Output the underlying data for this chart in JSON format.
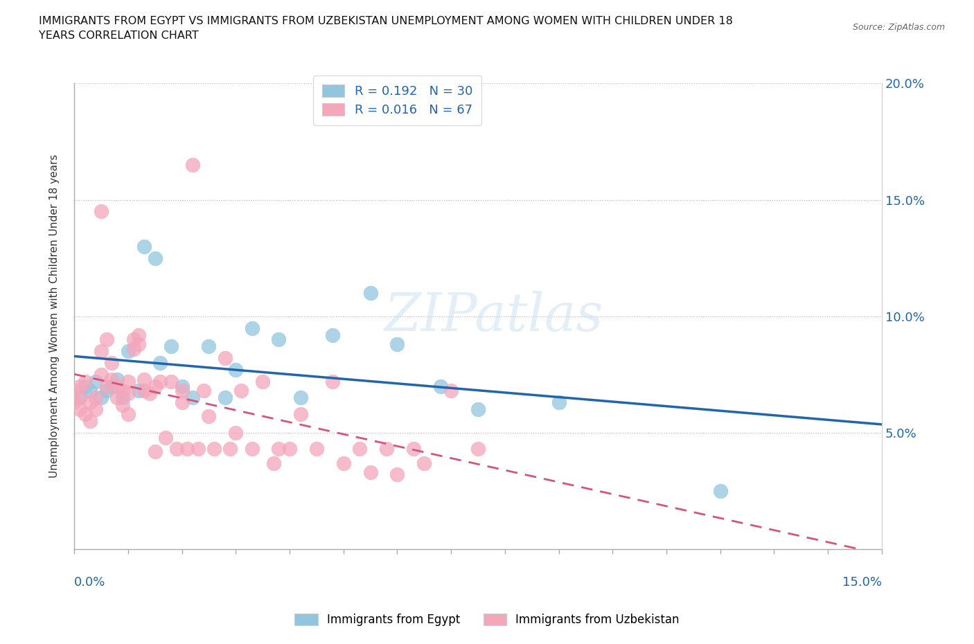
{
  "title": "IMMIGRANTS FROM EGYPT VS IMMIGRANTS FROM UZBEKISTAN UNEMPLOYMENT AMONG WOMEN WITH CHILDREN UNDER 18\nYEARS CORRELATION CHART",
  "source": "Source: ZipAtlas.com",
  "ylabel": "Unemployment Among Women with Children Under 18 years",
  "x_min": 0.0,
  "x_max": 0.15,
  "y_min": 0.0,
  "y_max": 0.2,
  "watermark": "ZIPatlas",
  "legend_egypt": {
    "R": 0.192,
    "N": 30,
    "color": "#92c5de",
    "line_color": "#2166ac"
  },
  "legend_uzbekistan": {
    "R": 0.016,
    "N": 67,
    "color": "#f4a6bb",
    "line_color": "#d6547a"
  },
  "egypt_x": [
    0.001,
    0.002,
    0.003,
    0.004,
    0.005,
    0.006,
    0.007,
    0.008,
    0.009,
    0.01,
    0.012,
    0.013,
    0.015,
    0.016,
    0.018,
    0.02,
    0.022,
    0.025,
    0.028,
    0.03,
    0.033,
    0.038,
    0.042,
    0.048,
    0.055,
    0.06,
    0.068,
    0.075,
    0.09,
    0.12
  ],
  "egypt_y": [
    0.065,
    0.07,
    0.068,
    0.072,
    0.065,
    0.068,
    0.07,
    0.073,
    0.065,
    0.085,
    0.068,
    0.13,
    0.125,
    0.08,
    0.087,
    0.07,
    0.065,
    0.087,
    0.065,
    0.077,
    0.095,
    0.09,
    0.065,
    0.092,
    0.11,
    0.088,
    0.07,
    0.06,
    0.063,
    0.025
  ],
  "uzbekistan_x": [
    0.0,
    0.0,
    0.001,
    0.001,
    0.001,
    0.002,
    0.002,
    0.003,
    0.003,
    0.004,
    0.004,
    0.005,
    0.005,
    0.005,
    0.006,
    0.006,
    0.007,
    0.007,
    0.008,
    0.008,
    0.009,
    0.009,
    0.01,
    0.01,
    0.01,
    0.011,
    0.011,
    0.012,
    0.012,
    0.013,
    0.013,
    0.014,
    0.015,
    0.015,
    0.016,
    0.017,
    0.018,
    0.019,
    0.02,
    0.02,
    0.021,
    0.022,
    0.023,
    0.024,
    0.025,
    0.026,
    0.028,
    0.029,
    0.03,
    0.031,
    0.033,
    0.035,
    0.037,
    0.038,
    0.04,
    0.042,
    0.045,
    0.048,
    0.05,
    0.053,
    0.055,
    0.058,
    0.06,
    0.063,
    0.065,
    0.07,
    0.075
  ],
  "uzbekistan_y": [
    0.068,
    0.063,
    0.07,
    0.065,
    0.06,
    0.058,
    0.072,
    0.063,
    0.055,
    0.065,
    0.06,
    0.085,
    0.075,
    0.145,
    0.07,
    0.09,
    0.08,
    0.073,
    0.07,
    0.065,
    0.068,
    0.062,
    0.072,
    0.067,
    0.058,
    0.09,
    0.086,
    0.092,
    0.088,
    0.073,
    0.068,
    0.067,
    0.07,
    0.042,
    0.072,
    0.048,
    0.072,
    0.043,
    0.068,
    0.063,
    0.043,
    0.165,
    0.043,
    0.068,
    0.057,
    0.043,
    0.082,
    0.043,
    0.05,
    0.068,
    0.043,
    0.072,
    0.037,
    0.043,
    0.043,
    0.058,
    0.043,
    0.072,
    0.037,
    0.043,
    0.033,
    0.043,
    0.032,
    0.043,
    0.037,
    0.068,
    0.043
  ]
}
